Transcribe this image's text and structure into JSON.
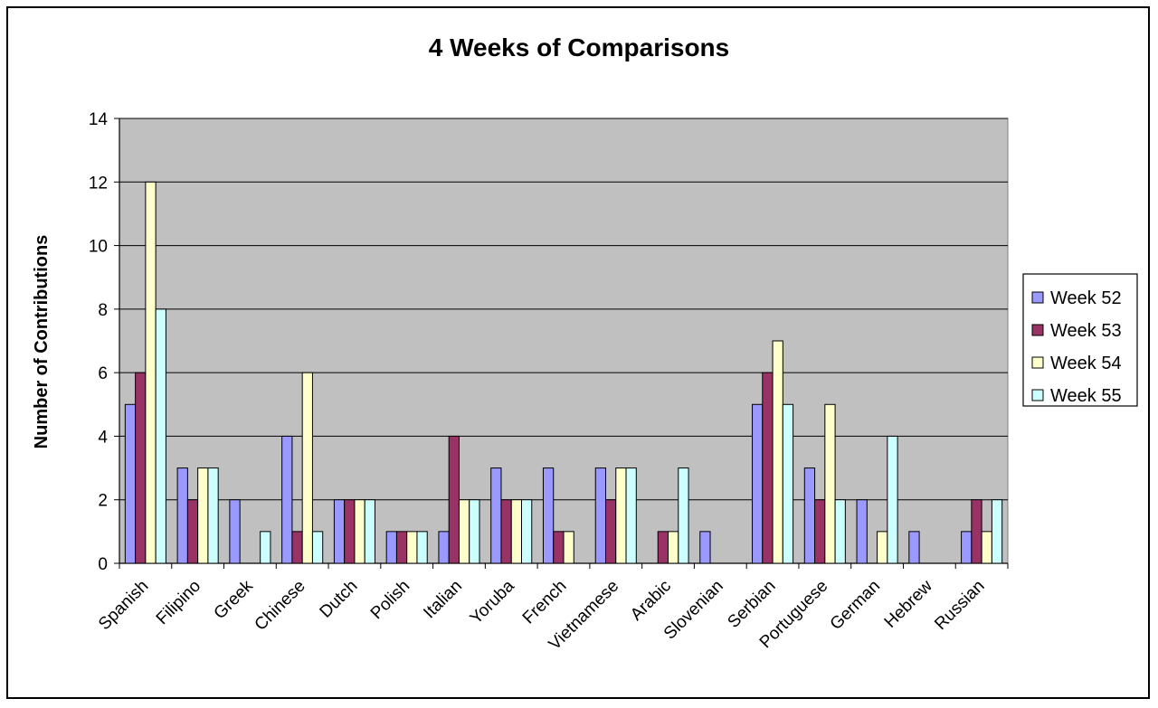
{
  "chart_data": {
    "type": "bar",
    "title": "4 Weeks of Comparisons",
    "xlabel": "",
    "ylabel": "Number of Contributions",
    "ylim": [
      0,
      14
    ],
    "yticks": [
      0,
      2,
      4,
      6,
      8,
      10,
      12,
      14
    ],
    "grid": true,
    "legend_position": "right",
    "plot_background": "#c0c0c0",
    "categories": [
      "Spanish",
      "Filipino",
      "Greek",
      "Chinese",
      "Dutch",
      "Polish",
      "Italian",
      "Yoruba",
      "French",
      "Vietnamese",
      "Arabic",
      "Slovenian",
      "Serbian",
      "Portuguese",
      "German",
      "Hebrew",
      "Russian"
    ],
    "series": [
      {
        "name": "Week 52",
        "color": "#9999ff",
        "values": [
          5,
          3,
          2,
          4,
          2,
          1,
          1,
          3,
          3,
          3,
          0,
          1,
          5,
          3,
          2,
          1,
          1
        ]
      },
      {
        "name": "Week 53",
        "color": "#993366",
        "values": [
          6,
          2,
          0,
          1,
          2,
          1,
          4,
          2,
          1,
          2,
          1,
          0,
          6,
          2,
          0,
          0,
          2
        ]
      },
      {
        "name": "Week 54",
        "color": "#ffffcc",
        "values": [
          12,
          3,
          0,
          6,
          2,
          1,
          2,
          2,
          1,
          3,
          1,
          0,
          7,
          5,
          1,
          0,
          1
        ]
      },
      {
        "name": "Week 55",
        "color": "#ccffff",
        "values": [
          8,
          3,
          1,
          1,
          2,
          1,
          2,
          2,
          0,
          3,
          3,
          0,
          5,
          2,
          4,
          0,
          2
        ]
      }
    ]
  }
}
